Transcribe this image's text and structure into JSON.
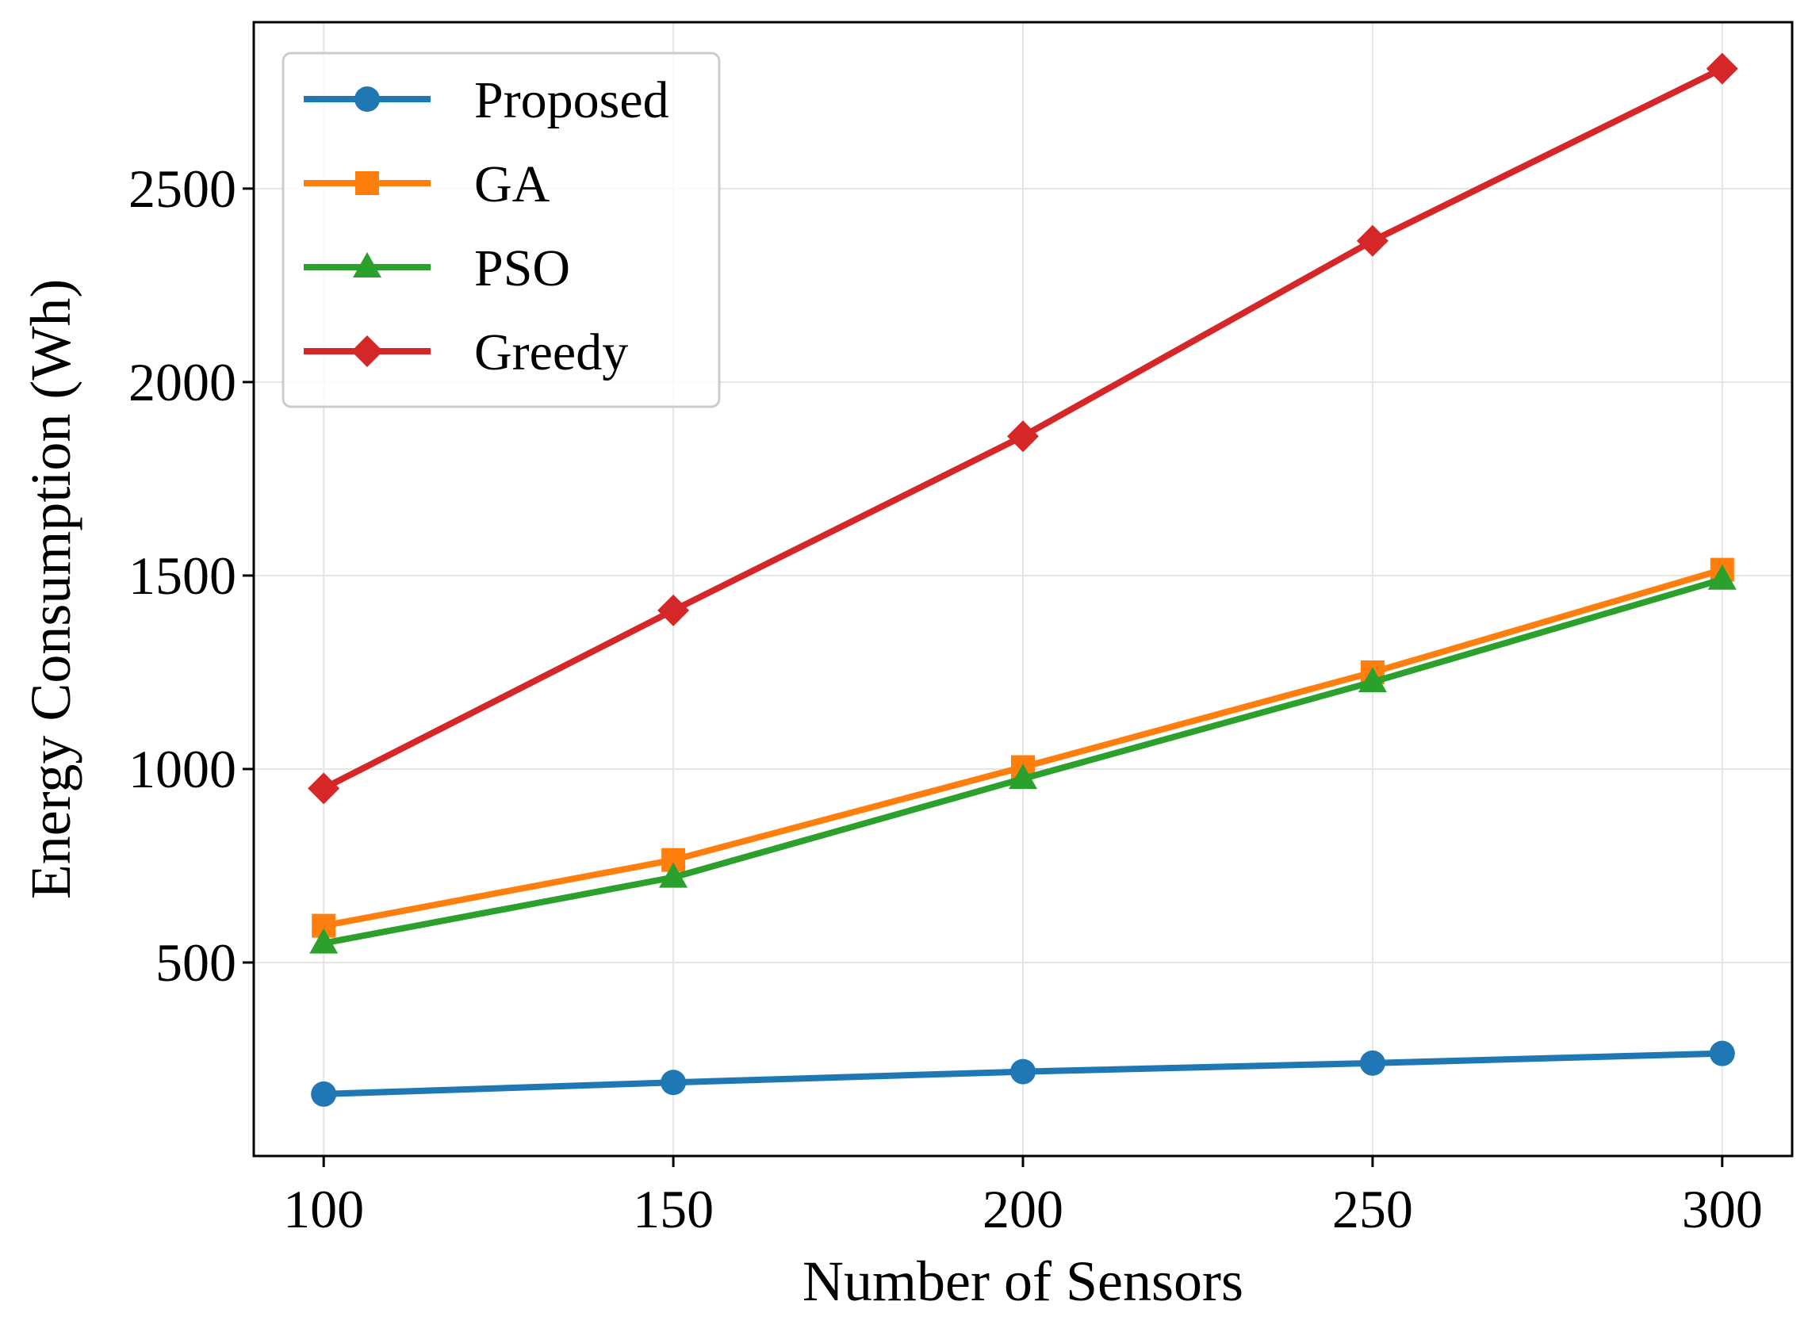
{
  "chart_data": {
    "type": "line",
    "title": "",
    "xlabel": "Number of Sensors",
    "ylabel": "Energy Consumption (Wh)",
    "x": [
      100,
      150,
      200,
      250,
      300
    ],
    "xlim": [
      90,
      310
    ],
    "ylim": [
      0,
      2930
    ],
    "xticks": [
      100,
      150,
      200,
      250,
      300
    ],
    "yticks": [
      500,
      1000,
      1500,
      2000,
      2500
    ],
    "xtick_labels": [
      "100",
      "150",
      "200",
      "250",
      "300"
    ],
    "ytick_labels": [
      "500",
      "1000",
      "1500",
      "2000",
      "2500"
    ],
    "grid": true,
    "legend_position": "top-left",
    "series": [
      {
        "name": "Proposed",
        "color": "#1f77b4",
        "marker": "circle",
        "values": [
          160,
          190,
          218,
          240,
          265
        ]
      },
      {
        "name": "GA",
        "color": "#ff7f0e",
        "marker": "square",
        "values": [
          595,
          765,
          1005,
          1250,
          1515
        ]
      },
      {
        "name": "PSO",
        "color": "#2ca02c",
        "marker": "triangle",
        "values": [
          550,
          720,
          975,
          1225,
          1490
        ]
      },
      {
        "name": "Greedy",
        "color": "#d62728",
        "marker": "diamond",
        "values": [
          950,
          1410,
          1860,
          2365,
          2810
        ]
      }
    ]
  }
}
